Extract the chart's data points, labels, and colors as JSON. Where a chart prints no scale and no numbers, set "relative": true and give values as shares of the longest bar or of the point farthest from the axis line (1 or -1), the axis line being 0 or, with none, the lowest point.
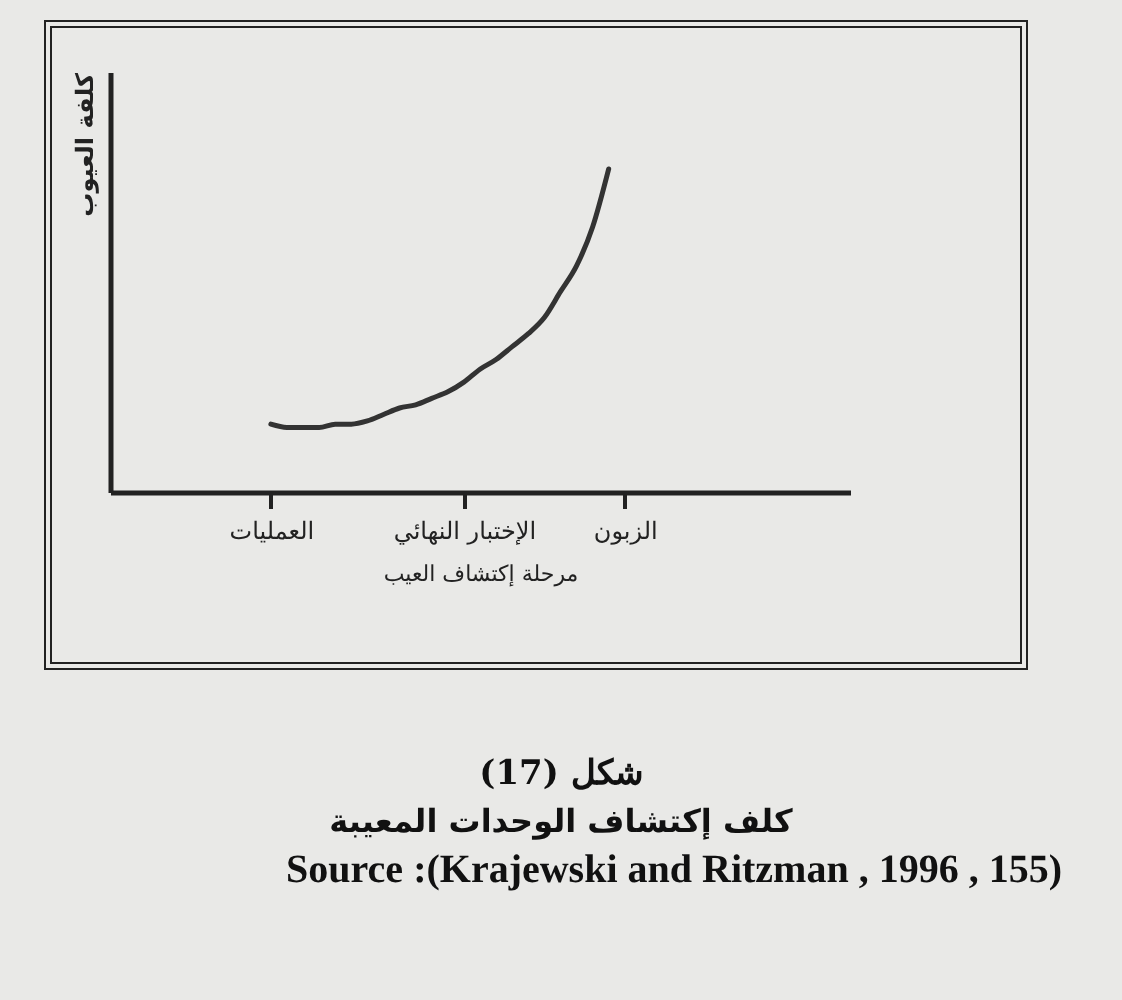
{
  "chart_data": {
    "type": "line",
    "title": "كلف إكتشاف الوحدات المعيبة",
    "xlabel": "مرحلة إكتشاف العيب",
    "ylabel": "كلفة العيوب",
    "relative": true,
    "tick_labels": "x",
    "annotations": [
      "شكل (17)",
      "Source :(Krajewski and Ritzman , 1996 , 155)"
    ],
    "categories": [
      null,
      null,
      null,
      null,
      null,
      null,
      null,
      null,
      null,
      null,
      "العمليات",
      null,
      null,
      null,
      null,
      null,
      null,
      null,
      null,
      null,
      null,
      null,
      "الإختبار النهائي",
      null,
      null,
      null,
      null,
      null,
      null,
      null,
      null,
      null,
      "الزبون",
      null,
      null,
      null,
      null,
      null,
      null,
      null,
      null,
      null,
      null,
      null,
      null,
      null,
      null
    ],
    "series": [
      {
        "color": "#333333",
        "values": [
          null,
          null,
          null,
          null,
          null,
          null,
          null,
          null,
          null,
          null,
          0.21,
          0.2,
          0.2,
          0.2,
          0.21,
          0.21,
          0.22,
          0.24,
          0.26,
          0.27,
          0.29,
          0.31,
          0.34,
          0.38,
          0.41,
          0.45,
          0.49,
          0.54,
          0.62,
          0.7,
          0.82,
          1.0,
          null,
          null,
          null,
          null,
          null,
          null,
          null,
          null,
          null,
          null,
          null,
          null,
          null,
          null,
          null
        ]
      }
    ]
  }
}
